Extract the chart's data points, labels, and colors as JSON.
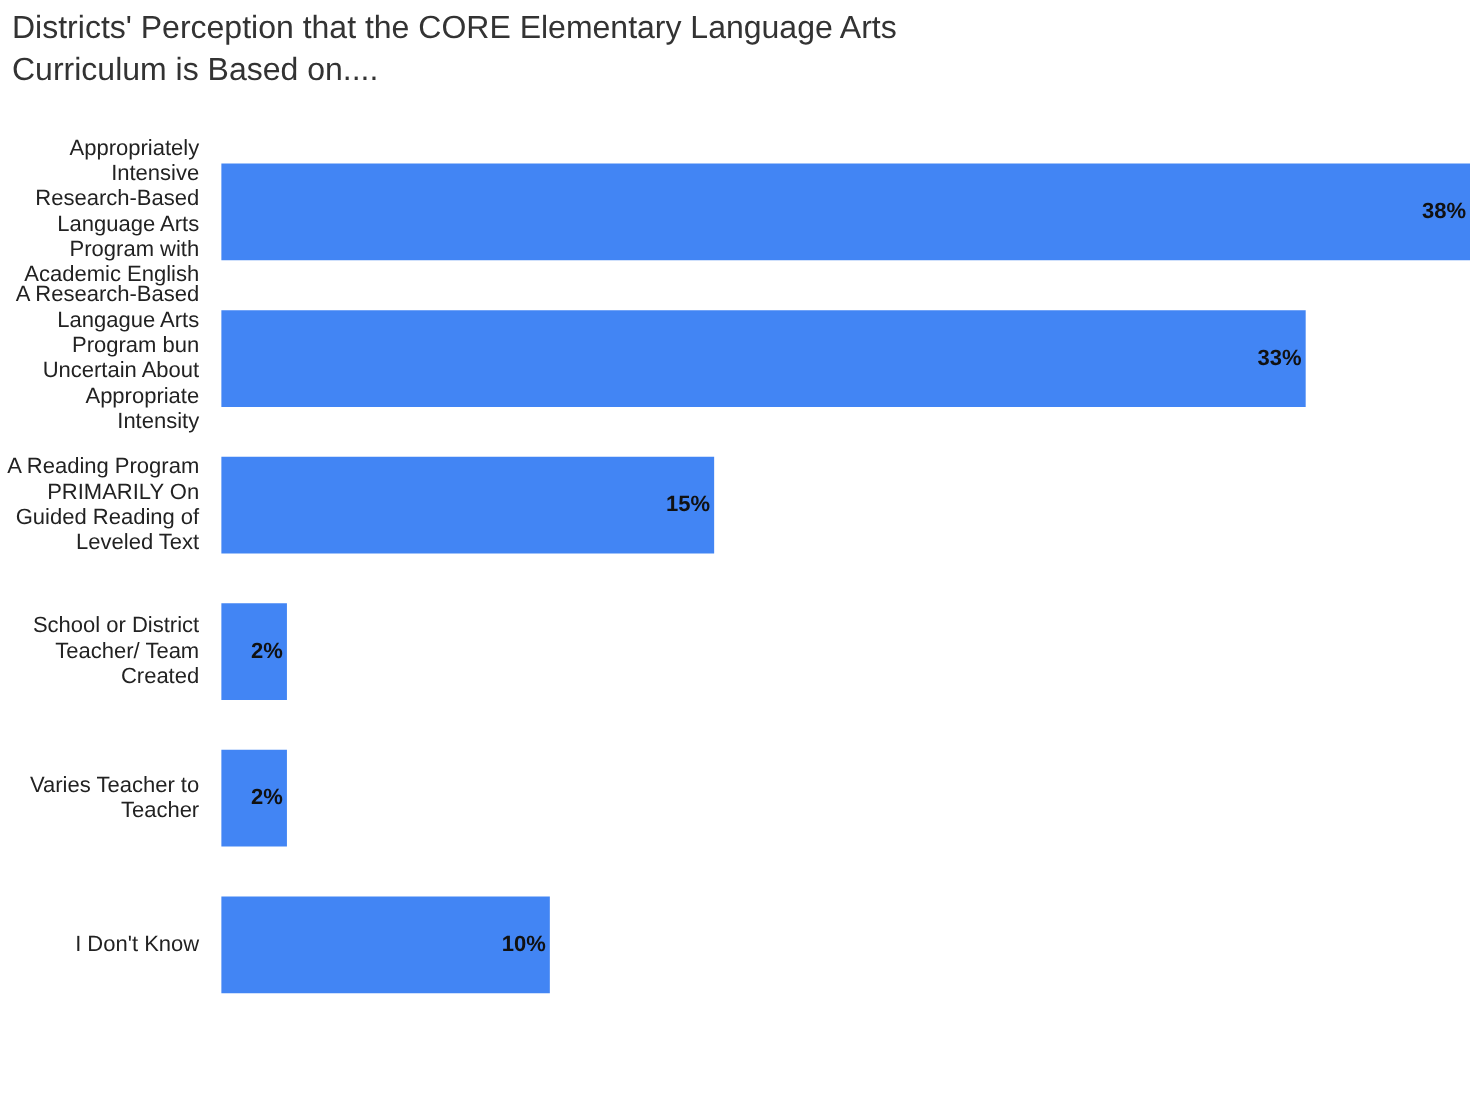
{
  "chart_data": {
    "type": "bar",
    "orientation": "horizontal",
    "title": "Districts' Perception that the CORE Elementary Language Arts Curriculum is Based on....",
    "categories": [
      "Appropriately Intensive Research-Based Language Arts Program with Academic English",
      "A Research-Based Langague Arts Program bun Uncertain About Appropriate Intensity",
      "A Reading Program PRIMARILY On Guided Reading of Leveled Text",
      "School or District Teacher/ Team Created",
      "Varies Teacher to Teacher",
      "I Don't Know"
    ],
    "values": [
      38,
      33,
      15,
      2,
      2,
      10
    ],
    "value_labels": [
      "38%",
      "33%",
      "15%",
      "2%",
      "2%",
      "10%"
    ],
    "color": "#4285f4",
    "tick_labels": "y",
    "legend": false
  }
}
